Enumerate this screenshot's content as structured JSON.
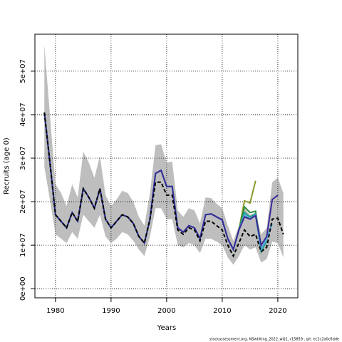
{
  "chart_data": {
    "type": "line",
    "xlabel": "Years",
    "ylabel": "Recruits (age 0)",
    "footnote": "stockassessment.org, NSwhiting_2022_wQ1, r15859 , git: ec2c2a0c6dde",
    "x": [
      1978,
      1979,
      1980,
      1981,
      1982,
      1983,
      1984,
      1985,
      1986,
      1987,
      1988,
      1989,
      1990,
      1991,
      1992,
      1993,
      1994,
      1995,
      1996,
      1997,
      1998,
      1999,
      2000,
      2001,
      2002,
      2003,
      2004,
      2005,
      2006,
      2007,
      2008,
      2009,
      2010,
      2011,
      2012,
      2013,
      2014,
      2015,
      2016,
      2017,
      2018,
      2019,
      2020,
      2021
    ],
    "xlim": [
      1976.3,
      2023.6
    ],
    "xticks": [
      1980,
      1990,
      2000,
      2010,
      2020
    ],
    "ylim": [
      -2100000.0,
      58500000.0
    ],
    "yticks": [
      {
        "value": 0,
        "label": "0e+00"
      },
      {
        "value": 10000000.0,
        "label": "1e+07"
      },
      {
        "value": 20000000.0,
        "label": "2e+07"
      },
      {
        "value": 30000000.0,
        "label": "3e+07"
      },
      {
        "value": 40000000.0,
        "label": "4e+07"
      },
      {
        "value": 50000000.0,
        "label": "5e+07"
      }
    ],
    "grid": true,
    "band": {
      "color": "#bebebe",
      "upper": [
        56000000.0,
        40000000.0,
        24000000.0,
        22000000.0,
        19000000.0,
        24000000.0,
        21000000.0,
        31500000.0,
        29000000.0,
        25500000.0,
        30500000.0,
        21500000.0,
        19000000.0,
        20500000.0,
        22500000.0,
        22000000.0,
        20000000.0,
        16500000.0,
        14500000.0,
        22000000.0,
        33000000.0,
        33200000.0,
        29000000.0,
        29200000.0,
        18000000.0,
        16500000.0,
        18500000.0,
        18000000.0,
        15000000.0,
        21000000.0,
        20800000.0,
        19500000.0,
        18500000.0,
        14500000.0,
        11000000.0,
        14500000.0,
        18500000.0,
        17000000.0,
        17500000.0,
        12500000.0,
        14000000.0,
        24500000.0,
        25500000.0,
        22000000.0
      ],
      "lower": [
        28000000.0,
        20500000.0,
        12500000.0,
        11500000.0,
        10500000.0,
        13000000.0,
        11500000.0,
        17000000.0,
        15500000.0,
        14000000.0,
        17000000.0,
        12000000.0,
        10500000.0,
        11500000.0,
        13000000.0,
        12500000.0,
        11000000.0,
        9000000.0,
        7500000.0,
        12000000.0,
        18500000.0,
        18500000.0,
        16000000.0,
        16000000.0,
        10000000.0,
        9500000.0,
        10500000.0,
        10000000.0,
        8200000.0,
        11500000.0,
        11500000.0,
        10800000.0,
        10000000.0,
        7200000.0,
        5500000.0,
        7500000.0,
        10000000.0,
        9000000.0,
        9500000.0,
        6000000.0,
        6800000.0,
        10800000.0,
        10500000.0,
        7200000.0
      ]
    },
    "series": [
      {
        "color": "#8a9a2a",
        "linestyle": "solid",
        "values": [
          40500000.0,
          29000000.0,
          17000000.0,
          15500000.0,
          14000000.0,
          17500000.0,
          15500000.0,
          23000000.0,
          21000000.0,
          18500000.0,
          23000000.0,
          16000000.0,
          14000000.0,
          15500000.0,
          17000000.0,
          16500000.0,
          15000000.0,
          12000000.0,
          10500000.0,
          16000000.0,
          26500000.0,
          27200000.0,
          23500000.0,
          23500000.0,
          14000000.0,
          13000000.0,
          14500000.0,
          14000000.0,
          11500000.0,
          17000000.0,
          17200000.0,
          16500000.0,
          15800000.0,
          11500000.0,
          9000000.0,
          13500000.0,
          20200000.0,
          19700000.0,
          24800000.0,
          null,
          null,
          null,
          null,
          null
        ]
      },
      {
        "color": "#2e8b3a",
        "linestyle": "solid",
        "values": [
          40500000.0,
          29000000.0,
          17000000.0,
          15500000.0,
          14000000.0,
          17500000.0,
          15500000.0,
          23000000.0,
          21000000.0,
          18500000.0,
          23000000.0,
          16000000.0,
          14000000.0,
          15500000.0,
          17000000.0,
          16500000.0,
          15000000.0,
          12000000.0,
          10500000.0,
          16000000.0,
          26500000.0,
          27200000.0,
          23500000.0,
          23500000.0,
          14000000.0,
          13000000.0,
          14500000.0,
          14000000.0,
          11500000.0,
          17000000.0,
          17200000.0,
          16500000.0,
          15800000.0,
          11500000.0,
          9000000.0,
          13500000.0,
          18800000.0,
          17500000.0,
          17800000.0,
          9500000.0,
          null,
          null,
          null,
          null
        ]
      },
      {
        "color": "#1e9e8c",
        "linestyle": "solid",
        "values": [
          40500000.0,
          29000000.0,
          17000000.0,
          15500000.0,
          14000000.0,
          17500000.0,
          15500000.0,
          23000000.0,
          21000000.0,
          18500000.0,
          23000000.0,
          16000000.0,
          14000000.0,
          15500000.0,
          17000000.0,
          16500000.0,
          15000000.0,
          12000000.0,
          10500000.0,
          16000000.0,
          26500000.0,
          27200000.0,
          23500000.0,
          23500000.0,
          14000000.0,
          13000000.0,
          14500000.0,
          14000000.0,
          11500000.0,
          17000000.0,
          17200000.0,
          16500000.0,
          15800000.0,
          11500000.0,
          9000000.0,
          13500000.0,
          17500000.0,
          16500000.0,
          17200000.0,
          8500000.0,
          11000000.0,
          null,
          null,
          null
        ]
      },
      {
        "color": "#4aa8d8",
        "linestyle": "solid",
        "values": [
          40500000.0,
          29000000.0,
          17000000.0,
          15500000.0,
          14000000.0,
          17500000.0,
          15500000.0,
          23000000.0,
          21000000.0,
          18500000.0,
          23000000.0,
          16000000.0,
          14000000.0,
          15500000.0,
          17000000.0,
          16500000.0,
          15000000.0,
          12000000.0,
          10500000.0,
          16000000.0,
          26500000.0,
          27200000.0,
          23500000.0,
          23500000.0,
          14000000.0,
          13000000.0,
          14500000.0,
          14000000.0,
          11500000.0,
          17000000.0,
          17200000.0,
          16500000.0,
          15800000.0,
          11500000.0,
          9000000.0,
          13500000.0,
          17000000.0,
          16000000.0,
          17000000.0,
          9000000.0,
          11500000.0,
          15000000.0,
          null,
          null
        ]
      },
      {
        "color": "#3a2a9a",
        "linestyle": "solid",
        "values": [
          40500000.0,
          29000000.0,
          17000000.0,
          15500000.0,
          14000000.0,
          17500000.0,
          15500000.0,
          23000000.0,
          21000000.0,
          18500000.0,
          23000000.0,
          16000000.0,
          14000000.0,
          15500000.0,
          17000000.0,
          16500000.0,
          15000000.0,
          12000000.0,
          10500000.0,
          16000000.0,
          26500000.0,
          27200000.0,
          23500000.0,
          23500000.0,
          14000000.0,
          13000000.0,
          14500000.0,
          14000000.0,
          11500000.0,
          17000000.0,
          17200000.0,
          16500000.0,
          15800000.0,
          11500000.0,
          9000000.0,
          13500000.0,
          16500000.0,
          16000000.0,
          16800000.0,
          10000000.0,
          12000000.0,
          20500000.0,
          21500000.0,
          null
        ]
      },
      {
        "color": "#000000",
        "linestyle": "dashed",
        "values": [
          40500000.0,
          29000000.0,
          17000000.0,
          15500000.0,
          14000000.0,
          17500000.0,
          15500000.0,
          23000000.0,
          21000000.0,
          18500000.0,
          23000000.0,
          16000000.0,
          14000000.0,
          15500000.0,
          17000000.0,
          16500000.0,
          15000000.0,
          12000000.0,
          10500000.0,
          16000000.0,
          24500000.0,
          24500000.0,
          21500000.0,
          21500000.0,
          13500000.0,
          12500000.0,
          14000000.0,
          13500000.0,
          11000000.0,
          15500000.0,
          15500000.0,
          14500000.0,
          13500000.0,
          10000000.0,
          7500000.0,
          10500000.0,
          13500000.0,
          12000000.0,
          12500000.0,
          8500000.0,
          9500000.0,
          16000000.0,
          16200000.0,
          12500000.0
        ]
      }
    ]
  }
}
